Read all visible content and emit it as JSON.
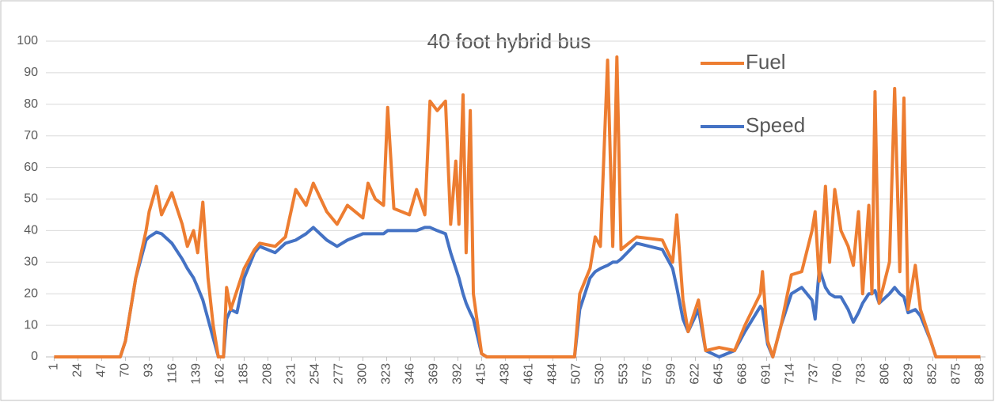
{
  "chart_data": {
    "type": "line",
    "title": "40 foot hybrid bus",
    "x": [
      1,
      65,
      70,
      80,
      90,
      93,
      100,
      105,
      115,
      125,
      130,
      136,
      140,
      145,
      150,
      155,
      160,
      165,
      168,
      172,
      178,
      185,
      195,
      200,
      215,
      225,
      235,
      245,
      252,
      265,
      275,
      285,
      300,
      305,
      312,
      320,
      324,
      330,
      345,
      352,
      360,
      365,
      372,
      380,
      385,
      390,
      393,
      397,
      400,
      404,
      407,
      415,
      420,
      505,
      510,
      520,
      525,
      530,
      537,
      542,
      546,
      550,
      565,
      590,
      600,
      604,
      610,
      615,
      625,
      632,
      645,
      660,
      670,
      685,
      687,
      692,
      697,
      705,
      715,
      725,
      735,
      738,
      742,
      748,
      752,
      757,
      763,
      770,
      775,
      780,
      784,
      790,
      793,
      796,
      800,
      810,
      815,
      820,
      824,
      828,
      835,
      840,
      850,
      855,
      898
    ],
    "series": [
      {
        "name": "Fuel",
        "color": "#ed7d31",
        "values": [
          0,
          0,
          5,
          25,
          40,
          46,
          54,
          45,
          52,
          42,
          35,
          40,
          33,
          49,
          25,
          10,
          0,
          0,
          22,
          15,
          21,
          28,
          34,
          36,
          35,
          38,
          53,
          48,
          55,
          46,
          42,
          48,
          44,
          55,
          50,
          48,
          79,
          47,
          45,
          53,
          45,
          81,
          78,
          81,
          42,
          62,
          42,
          83,
          33,
          78,
          20,
          1,
          0,
          0,
          20,
          28,
          38,
          35,
          94,
          35,
          95,
          34,
          38,
          37,
          30,
          45,
          18,
          8,
          18,
          2,
          3,
          2,
          10,
          20,
          27,
          5,
          0,
          10,
          26,
          27,
          40,
          46,
          24,
          54,
          30,
          53,
          40,
          35,
          29,
          46,
          20,
          48,
          20,
          84,
          17,
          30,
          85,
          27,
          82,
          15,
          29,
          15,
          5,
          0,
          0
        ]
      },
      {
        "name": "Speed",
        "color": "#4472c4",
        "values": [
          0,
          0,
          5,
          25,
          37,
          38,
          39.5,
          39,
          36,
          31,
          28,
          25,
          22,
          18,
          12,
          6,
          0,
          0,
          12,
          15,
          14,
          25,
          33,
          35,
          33,
          36,
          37,
          39,
          41,
          37,
          35,
          37,
          39,
          39,
          39,
          39,
          40,
          40,
          40,
          40,
          41,
          41,
          40,
          39,
          33,
          28,
          25,
          20,
          17,
          14,
          12,
          1,
          0,
          0,
          15,
          25,
          27,
          28,
          29,
          30,
          30,
          31,
          36,
          34,
          28,
          22,
          12,
          8,
          15,
          2,
          0,
          2,
          8,
          16,
          15,
          4,
          0,
          10,
          20,
          22,
          18,
          12,
          28,
          22,
          20,
          19,
          19,
          15,
          11,
          14,
          17,
          20,
          20,
          21,
          17,
          20,
          22,
          20,
          19,
          14,
          15,
          13,
          5,
          0,
          0
        ]
      }
    ],
    "xlim": [
      -7,
      903
    ],
    "xticks": [
      1,
      24,
      47,
      70,
      93,
      116,
      139,
      162,
      185,
      208,
      231,
      254,
      277,
      300,
      323,
      346,
      369,
      392,
      415,
      438,
      461,
      484,
      507,
      530,
      553,
      576,
      599,
      622,
      645,
      668,
      691,
      714,
      737,
      760,
      783,
      806,
      829,
      852,
      875,
      898
    ],
    "ylim": [
      0,
      100
    ],
    "yticks": [
      0,
      10,
      20,
      30,
      40,
      50,
      60,
      70,
      80,
      90,
      100
    ],
    "grid": true
  }
}
